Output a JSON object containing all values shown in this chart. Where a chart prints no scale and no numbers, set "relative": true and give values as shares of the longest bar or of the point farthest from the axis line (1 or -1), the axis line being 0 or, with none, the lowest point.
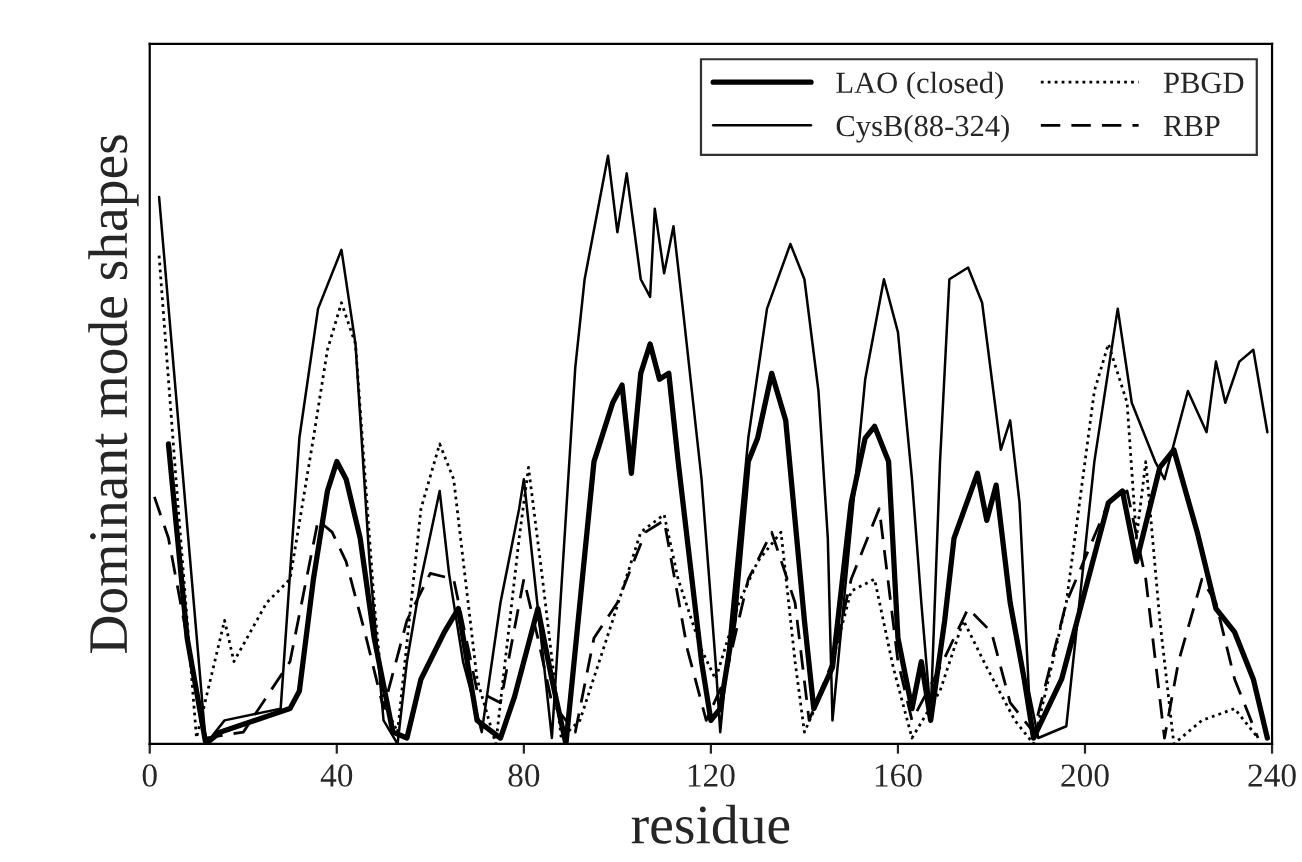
{
  "chart_data": {
    "type": "line",
    "relative": true,
    "xlabel": "residue",
    "ylabel": "Dominant mode shapes",
    "xlim": [
      0,
      240
    ],
    "xticks": [
      0,
      40,
      80,
      120,
      160,
      200,
      240
    ],
    "tick_labels": "x",
    "grid": false,
    "legend": "top right",
    "series": [
      {
        "name": "LAO (closed)",
        "color": "#000000",
        "line_style": "solid",
        "x": [
          4,
          8,
          12,
          15,
          30,
          32,
          35,
          38,
          40,
          42,
          45,
          48,
          52,
          55,
          58,
          63,
          66,
          70,
          75,
          78,
          83,
          86,
          89,
          95,
          99,
          101,
          103,
          105,
          107,
          109,
          111,
          113,
          118,
          120,
          122,
          125,
          128,
          130,
          133,
          136,
          140,
          142,
          146,
          150,
          153,
          155,
          158,
          160,
          163,
          165,
          167,
          170,
          172,
          177,
          179,
          181,
          184,
          187,
          189,
          195,
          199,
          205,
          208,
          211,
          216,
          219,
          224,
          228,
          232,
          236,
          239
        ],
        "values": [
          0.51,
          0.18,
          0,
          0.02,
          0.06,
          0.09,
          0.28,
          0.43,
          0.48,
          0.45,
          0.35,
          0.18,
          0.02,
          0.01,
          0.11,
          0.19,
          0.23,
          0.04,
          0.01,
          0.08,
          0.23,
          0.11,
          0,
          0.48,
          0.58,
          0.61,
          0.46,
          0.63,
          0.68,
          0.62,
          0.63,
          0.48,
          0.14,
          0.04,
          0.06,
          0.21,
          0.48,
          0.52,
          0.63,
          0.55,
          0.21,
          0.06,
          0.13,
          0.41,
          0.52,
          0.54,
          0.48,
          0.18,
          0.06,
          0.14,
          0.04,
          0.21,
          0.35,
          0.46,
          0.38,
          0.44,
          0.24,
          0.11,
          0.01,
          0.11,
          0.23,
          0.41,
          0.43,
          0.31,
          0.47,
          0.5,
          0.36,
          0.23,
          0.19,
          0.11,
          0.01
        ]
      },
      {
        "name": "PBGD",
        "color": "#000000",
        "line_style": "dotted",
        "x": [
          2,
          6,
          10,
          16,
          18,
          25,
          30,
          35,
          38,
          41,
          44,
          48,
          50,
          53,
          58,
          62,
          65,
          70,
          74,
          79,
          81,
          84,
          88,
          92,
          99,
          105,
          110,
          113,
          118,
          121,
          126,
          130,
          135,
          138,
          140,
          145,
          150,
          155,
          159,
          163,
          169,
          174,
          179,
          185,
          189,
          196,
          202,
          205,
          209,
          211,
          213,
          216,
          219,
          225,
          232,
          237
        ],
        "values": [
          0.83,
          0.41,
          0.01,
          0.21,
          0.14,
          0.24,
          0.28,
          0.52,
          0.67,
          0.75,
          0.68,
          0.24,
          0.07,
          0.02,
          0.4,
          0.51,
          0.45,
          0.11,
          0,
          0.35,
          0.47,
          0.28,
          0.01,
          0.04,
          0.21,
          0.36,
          0.39,
          0.28,
          0.16,
          0.11,
          0.24,
          0.31,
          0.36,
          0.14,
          0.02,
          0.11,
          0.26,
          0.28,
          0.13,
          0.01,
          0.09,
          0.21,
          0.13,
          0.04,
          0,
          0.24,
          0.6,
          0.68,
          0.58,
          0.35,
          0.48,
          0.21,
          0,
          0.04,
          0.06,
          0.01
        ]
      },
      {
        "name": "CysB(88-324)",
        "color": "#000000",
        "line_style": "solid",
        "x": [
          2,
          12,
          16,
          28,
          32,
          36,
          41,
          44,
          47,
          50,
          53,
          55,
          58,
          62,
          64,
          67,
          71,
          75,
          79,
          80,
          86,
          91,
          93,
          98,
          100,
          102,
          105,
          107,
          108,
          110,
          112,
          114,
          118,
          121,
          122,
          128,
          132,
          137,
          140,
          143,
          145,
          146,
          153,
          157,
          160,
          163,
          165,
          167,
          169,
          171,
          175,
          178,
          182,
          184,
          186,
          188,
          190,
          196,
          202,
          207,
          210,
          215,
          217,
          222,
          226,
          228,
          230,
          233,
          236,
          239
        ],
        "values": [
          0.93,
          0,
          0.04,
          0.06,
          0.52,
          0.74,
          0.84,
          0.68,
          0.31,
          0.04,
          0,
          0.14,
          0.28,
          0.43,
          0.29,
          0.14,
          0.02,
          0.24,
          0.4,
          0.45,
          0.01,
          0.64,
          0.79,
          1,
          0.87,
          0.97,
          0.79,
          0.76,
          0.91,
          0.8,
          0.88,
          0.74,
          0.45,
          0.14,
          0.02,
          0.52,
          0.74,
          0.85,
          0.79,
          0.6,
          0.35,
          0.04,
          0.62,
          0.79,
          0.7,
          0.45,
          0.24,
          0.05,
          0.48,
          0.79,
          0.81,
          0.75,
          0.5,
          0.55,
          0.41,
          0.09,
          0.01,
          0.03,
          0.48,
          0.74,
          0.58,
          0.48,
          0.45,
          0.6,
          0.53,
          0.65,
          0.58,
          0.65,
          0.67,
          0.53
        ]
      },
      {
        "name": "RBP",
        "color": "#000000",
        "line_style": "dashed",
        "x": [
          1,
          4,
          8,
          12,
          20,
          30,
          36,
          39,
          42,
          46,
          50,
          55,
          60,
          65,
          70,
          75,
          80,
          83,
          86,
          91,
          95,
          100,
          106,
          110,
          115,
          119,
          123,
          128,
          133,
          138,
          141,
          146,
          150,
          156,
          160,
          163,
          169,
          175,
          180,
          184,
          189,
          196,
          205,
          209,
          213,
          217,
          220,
          225,
          228,
          232,
          237
        ],
        "values": [
          0.42,
          0.35,
          0.18,
          0.01,
          0.02,
          0.14,
          0.38,
          0.36,
          0.31,
          0.19,
          0.06,
          0.21,
          0.29,
          0.28,
          0.09,
          0.07,
          0.28,
          0.18,
          0.07,
          0.02,
          0.18,
          0.24,
          0.36,
          0.38,
          0.16,
          0.04,
          0.11,
          0.28,
          0.36,
          0.24,
          0.04,
          0.14,
          0.28,
          0.4,
          0.14,
          0.04,
          0.13,
          0.23,
          0.19,
          0.07,
          0.02,
          0.24,
          0.41,
          0.43,
          0.28,
          0.01,
          0.14,
          0.28,
          0.24,
          0.11,
          0.01
        ]
      }
    ]
  }
}
